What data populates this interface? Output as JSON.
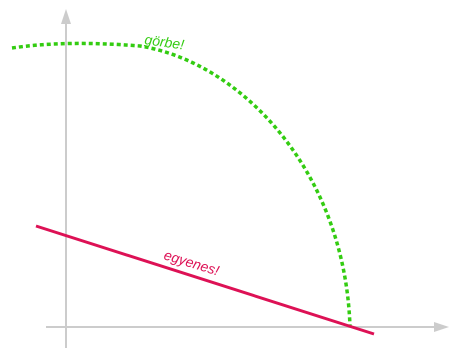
{
  "labels": {
    "curve": "görbe!",
    "line": "egyenes!"
  },
  "colors": {
    "axis": "#cccccc",
    "curve": "#33cc11",
    "line": "#dd1155"
  }
}
